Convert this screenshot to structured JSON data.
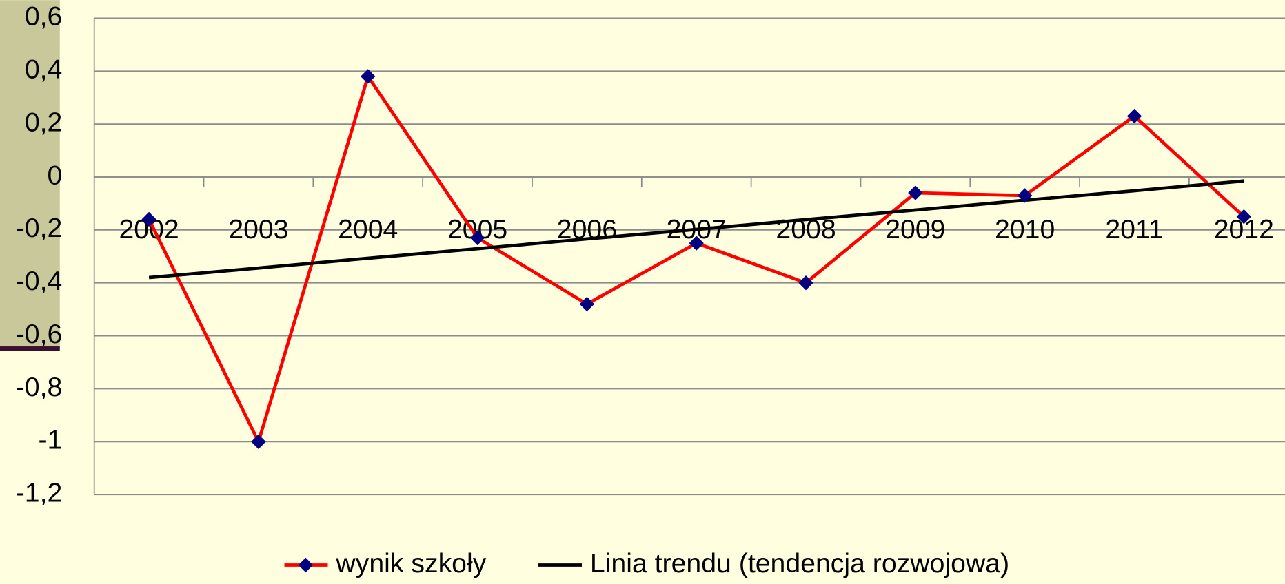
{
  "chart_data": {
    "type": "line",
    "categories": [
      "2002",
      "2003",
      "2004",
      "2005",
      "2006",
      "2007",
      "2008",
      "2009",
      "2010",
      "2011",
      "2012"
    ],
    "series": [
      {
        "name": "wynik szkoły",
        "color": "#ff0000",
        "marker_color": "#000080",
        "values": [
          -0.16,
          -1.0,
          0.38,
          -0.23,
          -0.48,
          -0.25,
          -0.4,
          -0.06,
          -0.07,
          0.23,
          -0.15
        ]
      },
      {
        "name": "Linia trendu (tendencja rozwojowa)",
        "color": "#000000",
        "values": [
          -0.38,
          -0.344,
          -0.307,
          -0.271,
          -0.234,
          -0.198,
          -0.161,
          -0.125,
          -0.088,
          -0.052,
          -0.015
        ]
      }
    ],
    "ylim": [
      -1.2,
      0.6
    ],
    "yticks": [
      {
        "value": -1.2,
        "label": "-1,2"
      },
      {
        "value": -1,
        "label": "-1"
      },
      {
        "value": -0.8,
        "label": "-0,8"
      },
      {
        "value": -0.6,
        "label": "-0,6"
      },
      {
        "value": -0.4,
        "label": "-0,4"
      },
      {
        "value": -0.2,
        "label": "-0,2"
      },
      {
        "value": 0,
        "label": "0"
      },
      {
        "value": 0.2,
        "label": "0,2"
      },
      {
        "value": 0.4,
        "label": "0,4"
      },
      {
        "value": 0.6,
        "label": "0,6"
      }
    ],
    "grid": true,
    "legend": "bottom"
  }
}
